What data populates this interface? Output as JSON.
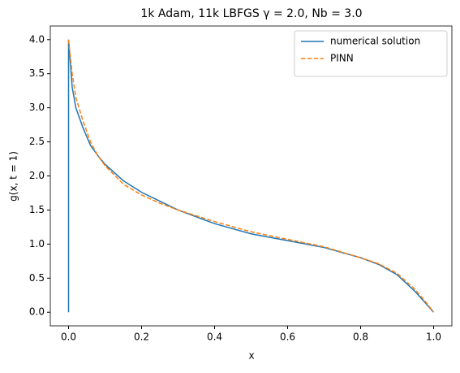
{
  "chart_data": {
    "type": "line",
    "title": "1k Adam, 11k LBFGS γ = 2.0, Nb = 3.0",
    "xlabel": "x",
    "ylabel": "g(x, t = 1)",
    "series": [
      {
        "name": "numerical solution",
        "color": "#1f77b4",
        "dash": "solid",
        "x": [
          0,
          0,
          0.01,
          0.02,
          0.04,
          0.06,
          0.08,
          0.1,
          0.15,
          0.2,
          0.25,
          0.3,
          0.4,
          0.5,
          0.6,
          0.7,
          0.8,
          0.85,
          0.9,
          0.95,
          0.98,
          1.0
        ],
        "values": [
          0,
          4.0,
          3.3,
          3.0,
          2.7,
          2.45,
          2.3,
          2.17,
          1.93,
          1.76,
          1.63,
          1.5,
          1.3,
          1.15,
          1.05,
          0.95,
          0.8,
          0.7,
          0.55,
          0.3,
          0.12,
          0.0
        ]
      },
      {
        "name": "PINN",
        "color": "#ff7f0e",
        "dash": "dashed",
        "x": [
          0,
          0.01,
          0.02,
          0.04,
          0.06,
          0.08,
          0.1,
          0.15,
          0.2,
          0.25,
          0.3,
          0.4,
          0.5,
          0.6,
          0.7,
          0.8,
          0.85,
          0.9,
          0.95,
          0.98,
          1.0
        ],
        "values": [
          4.0,
          3.5,
          3.15,
          2.8,
          2.5,
          2.3,
          2.15,
          1.88,
          1.72,
          1.6,
          1.5,
          1.33,
          1.18,
          1.07,
          0.96,
          0.8,
          0.71,
          0.57,
          0.33,
          0.14,
          0.0
        ]
      }
    ],
    "xlim": [
      -0.05,
      1.05
    ],
    "xticks": [
      {
        "value": 0,
        "label": "0.0"
      },
      0.2,
      0.4,
      0.6,
      0.8,
      {
        "value": 1,
        "label": "1.0"
      }
    ],
    "ylim": [
      -0.2,
      4.2
    ],
    "yticks": [
      {
        "value": 0,
        "label": "0.0"
      },
      0.5,
      {
        "value": 1,
        "label": "1.0"
      },
      1.5,
      {
        "value": 2,
        "label": "2.0"
      },
      2.5,
      {
        "value": 3,
        "label": "3.0"
      },
      3.5,
      {
        "value": 4,
        "label": "4.0"
      }
    ],
    "grid": false,
    "legend": "upper right"
  }
}
